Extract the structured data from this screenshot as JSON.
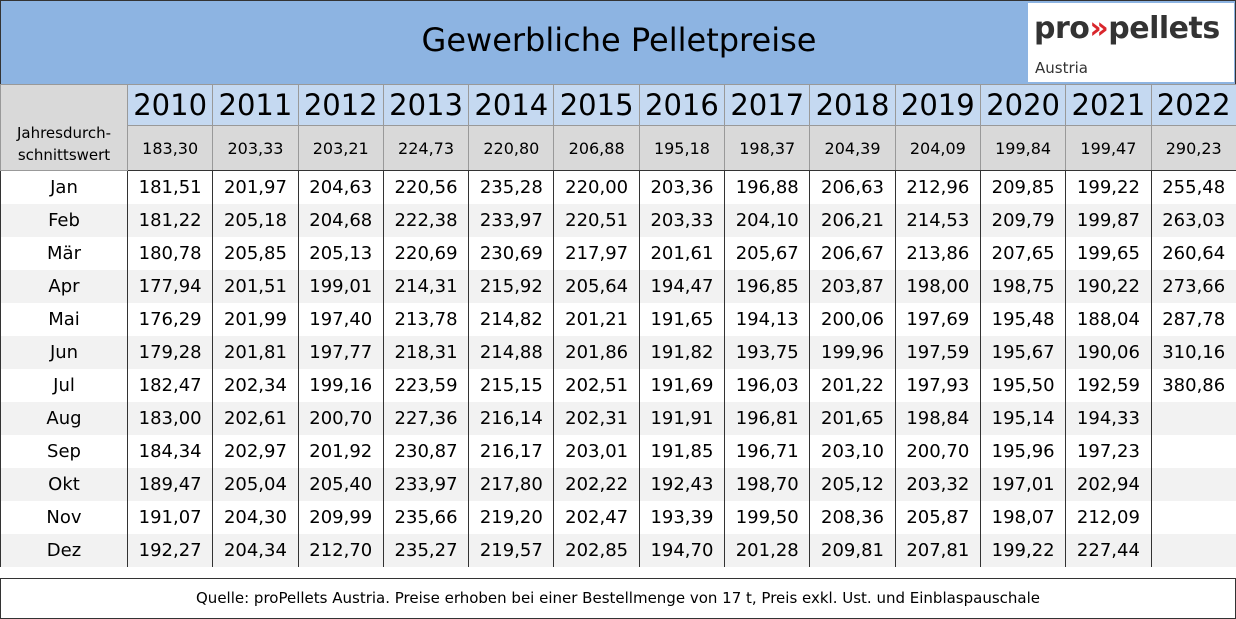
{
  "header": {
    "title": "Gewerbliche Pelletpreise",
    "logo": {
      "prefix": "pro",
      "mark": "»",
      "suffix": "pellets",
      "region": "Austria"
    }
  },
  "table": {
    "row_label": [
      "Jahresdurch-",
      "schnittswert"
    ],
    "years": [
      "2010",
      "2011",
      "2012",
      "2013",
      "2014",
      "2015",
      "2016",
      "2017",
      "2018",
      "2019",
      "2020",
      "2021",
      "2022"
    ],
    "averages": [
      "183,30",
      "203,33",
      "203,21",
      "224,73",
      "220,80",
      "206,88",
      "195,18",
      "198,37",
      "204,39",
      "204,09",
      "199,84",
      "199,47",
      "290,23"
    ],
    "rows": [
      [
        "Jan",
        "181,51",
        "201,97",
        "204,63",
        "220,56",
        "235,28",
        "220,00",
        "203,36",
        "196,88",
        "206,63",
        "212,96",
        "209,85",
        "199,22",
        "255,48"
      ],
      [
        "Feb",
        "181,22",
        "205,18",
        "204,68",
        "222,38",
        "233,97",
        "220,51",
        "203,33",
        "204,10",
        "206,21",
        "214,53",
        "209,79",
        "199,87",
        "263,03"
      ],
      [
        "Mär",
        "180,78",
        "205,85",
        "205,13",
        "220,69",
        "230,69",
        "217,97",
        "201,61",
        "205,67",
        "206,67",
        "213,86",
        "207,65",
        "199,65",
        "260,64"
      ],
      [
        "Apr",
        "177,94",
        "201,51",
        "199,01",
        "214,31",
        "215,92",
        "205,64",
        "194,47",
        "196,85",
        "203,87",
        "198,00",
        "198,75",
        "190,22",
        "273,66"
      ],
      [
        "Mai",
        "176,29",
        "201,99",
        "197,40",
        "213,78",
        "214,82",
        "201,21",
        "191,65",
        "194,13",
        "200,06",
        "197,69",
        "195,48",
        "188,04",
        "287,78"
      ],
      [
        "Jun",
        "179,28",
        "201,81",
        "197,77",
        "218,31",
        "214,88",
        "201,86",
        "191,82",
        "193,75",
        "199,96",
        "197,59",
        "195,67",
        "190,06",
        "310,16"
      ],
      [
        "Jul",
        "182,47",
        "202,34",
        "199,16",
        "223,59",
        "215,15",
        "202,51",
        "191,69",
        "196,03",
        "201,22",
        "197,93",
        "195,50",
        "192,59",
        "380,86"
      ],
      [
        "Aug",
        "183,00",
        "202,61",
        "200,70",
        "227,36",
        "216,14",
        "202,31",
        "191,91",
        "196,81",
        "201,65",
        "198,84",
        "195,14",
        "194,33",
        null
      ],
      [
        "Sep",
        "184,34",
        "202,97",
        "201,92",
        "230,87",
        "216,17",
        "203,01",
        "191,85",
        "196,71",
        "203,10",
        "200,70",
        "195,96",
        "197,23",
        null
      ],
      [
        "Okt",
        "189,47",
        "205,04",
        "205,40",
        "233,97",
        "217,80",
        "202,22",
        "192,43",
        "198,70",
        "205,12",
        "203,32",
        "197,01",
        "202,94",
        null
      ],
      [
        "Nov",
        "191,07",
        "204,30",
        "209,99",
        "235,66",
        "219,20",
        "202,47",
        "193,39",
        "199,50",
        "208,36",
        "205,87",
        "198,07",
        "212,09",
        null
      ],
      [
        "Dez",
        "192,27",
        "204,34",
        "212,70",
        "235,27",
        "219,57",
        "202,85",
        "194,70",
        "201,28",
        "209,81",
        "207,81",
        "199,22",
        "227,44",
        null
      ]
    ]
  },
  "footer": {
    "source": "Quelle: proPellets Austria. Preise erhoben bei einer Bestellmenge von 17 t, Preis exkl. Ust. und Einblaspauschale"
  }
}
